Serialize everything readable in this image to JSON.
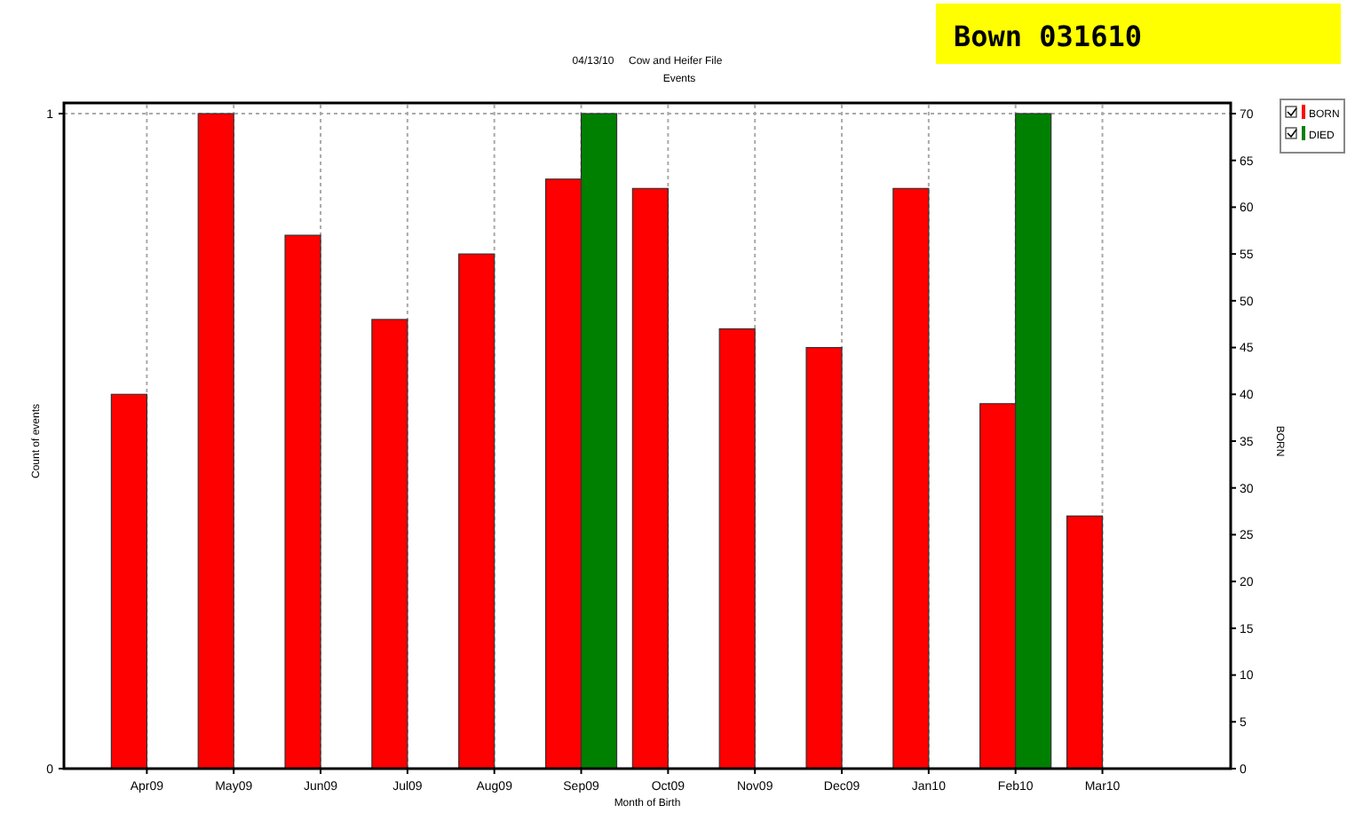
{
  "chart_data": {
    "type": "bar",
    "title": "04/13/10     Cow and Heifer File",
    "subtitle": "Events",
    "xlabel": "Month of Birth",
    "ylabel": "Count of events",
    "y2label": "BORN",
    "categories": [
      "Apr09",
      "May09",
      "Jun09",
      "Jul09",
      "Aug09",
      "Sep09",
      "Oct09",
      "Nov09",
      "Dec09",
      "Jan10",
      "Feb10",
      "Mar10"
    ],
    "series": [
      {
        "name": "BORN",
        "color": "#ff0000",
        "axis": "y2",
        "values": [
          40,
          70,
          57,
          48,
          55,
          63,
          62,
          47,
          45,
          62,
          39,
          27
        ]
      },
      {
        "name": "DIED",
        "color": "#008000",
        "values": [
          0,
          0,
          0,
          0,
          0,
          1,
          0,
          0,
          0,
          0,
          1,
          0
        ]
      }
    ],
    "ylim": [
      0,
      1
    ],
    "yticks": [
      0,
      1
    ],
    "y2lim": [
      0,
      70
    ],
    "y2ticks": [
      0,
      5,
      10,
      15,
      20,
      25,
      30,
      35,
      40,
      45,
      50,
      55,
      60,
      65,
      70
    ],
    "grid": true,
    "legend": "top right",
    "annotations": [
      "Bown 031610"
    ]
  }
}
